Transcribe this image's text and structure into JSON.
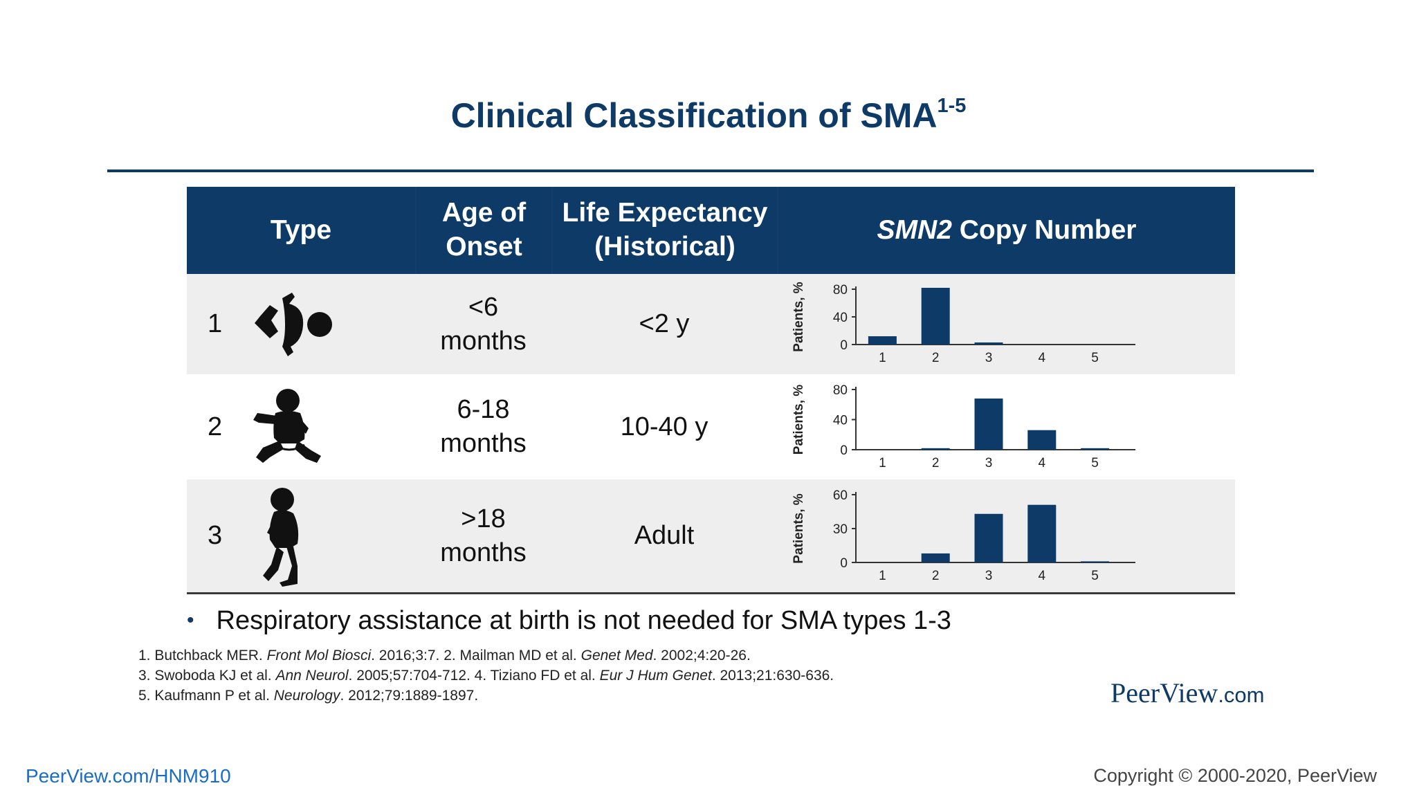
{
  "slide": {
    "title": "Clinical Classification of SMA",
    "title_sup": "1-5",
    "accent_color": "#0d3a66"
  },
  "table": {
    "headers": {
      "type": "Type",
      "age_line1": "Age of",
      "age_line2": "Onset",
      "life_line1": "Life Expectancy",
      "life_line2": "(Historical)",
      "smn_gene": "SMN2",
      "smn_rest": " Copy Number"
    },
    "rows": [
      {
        "type": "1",
        "icon": "infant-lying-icon",
        "age_line1": "<6",
        "age_line2": "months",
        "life": "<2 y"
      },
      {
        "type": "2",
        "icon": "infant-sitting-icon",
        "age_line1": "6-18",
        "age_line2": "months",
        "life": "10-40 y"
      },
      {
        "type": "3",
        "icon": "toddler-standing-icon",
        "age_line1": ">18",
        "age_line2": "months",
        "life": "Adult"
      }
    ]
  },
  "chart_data": [
    {
      "type": "bar",
      "categories": [
        "1",
        "2",
        "3",
        "4",
        "5"
      ],
      "values": [
        12,
        82,
        3,
        0,
        0
      ],
      "ylabel": "Patients, %",
      "ylim": [
        0,
        80
      ],
      "yticks": [
        0,
        40,
        80
      ],
      "grid": false,
      "series_color": "#0d3a66"
    },
    {
      "type": "bar",
      "categories": [
        "1",
        "2",
        "3",
        "4",
        "5"
      ],
      "values": [
        0,
        2,
        68,
        26,
        2
      ],
      "ylabel": "Patients, %",
      "ylim": [
        0,
        80
      ],
      "yticks": [
        0,
        40,
        80
      ],
      "grid": false,
      "series_color": "#0d3a66"
    },
    {
      "type": "bar",
      "categories": [
        "1",
        "2",
        "3",
        "4",
        "5"
      ],
      "values": [
        0,
        8,
        43,
        51,
        1
      ],
      "ylabel": "Patients, %",
      "ylim": [
        0,
        60
      ],
      "yticks": [
        0,
        30,
        60
      ],
      "grid": false,
      "series_color": "#0d3a66"
    }
  ],
  "bullet": "Respiratory assistance at birth is not needed for SMA types 1-3",
  "references": [
    [
      {
        "t": "1. Butchback MER. "
      },
      {
        "t": "Front Mol Biosci",
        "i": true
      },
      {
        "t": ". 2016;3:7. 2. Mailman MD et al. "
      },
      {
        "t": "Genet Med",
        "i": true
      },
      {
        "t": ". 2002;4:20-26."
      }
    ],
    [
      {
        "t": "3. Swoboda KJ et al. "
      },
      {
        "t": "Ann Neurol",
        "i": true
      },
      {
        "t": ". 2005;57:704-712. 4. Tiziano FD et al. "
      },
      {
        "t": "Eur J Hum Genet",
        "i": true
      },
      {
        "t": ". 2013;21:630-636."
      }
    ],
    [
      {
        "t": "5. Kaufmann P et al. "
      },
      {
        "t": "Neurology",
        "i": true
      },
      {
        "t": ". 2012;79:1889-1897."
      }
    ]
  ],
  "brand": {
    "name": "PeerView",
    "suffix": ".com"
  },
  "footer": {
    "link": "PeerView.com/HNM910",
    "copyright": "Copyright © 2000-2020, PeerView"
  }
}
